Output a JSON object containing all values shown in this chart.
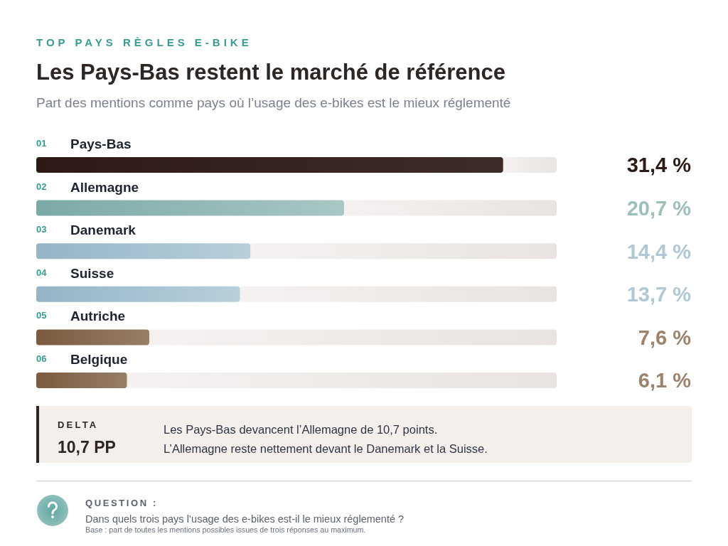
{
  "chart_data": {
    "type": "bar",
    "orientation": "horizontal",
    "title": "Les Pays-Bas restent le marché de référence",
    "subtitle": "Part des mentions comme pays où l’usage des e-bikes est le mieux réglementé",
    "categories": [
      "Pays-Bas",
      "Allemagne",
      "Danemark",
      "Suisse",
      "Autriche",
      "Belgique"
    ],
    "values": [
      31.4,
      20.7,
      14.4,
      13.7,
      7.6,
      6.1
    ],
    "value_labels": [
      "31,4 %",
      "20,7 %",
      "14,4 %",
      "13,7 %",
      "7,6 %",
      "6,1 %"
    ],
    "colors": [
      "#2d1a16",
      "#7ba9a6",
      "#94b5c6",
      "#94b5c6",
      "#7b5a3e",
      "#7b5a3e"
    ],
    "xlim": [
      0,
      35
    ],
    "tick_labels": "y",
    "annotations": [
      "TOP PAYS RÈGLES E-BIKE",
      "01",
      "02",
      "03",
      "04",
      "05",
      "06",
      "DELTA",
      "10,7 PP",
      "Les Pays-Bas devancent l’Allemagne de 10,7 points.",
      "L’Allemagne reste nettement devant le Danemark et la Suisse.",
      "QUESTION :",
      "Dans quels trois pays l’usage des e-bikes est-il le mieux réglementé ?",
      "Base : part de toutes les mentions possibles issues de trois réponses au maximum."
    ]
  }
}
